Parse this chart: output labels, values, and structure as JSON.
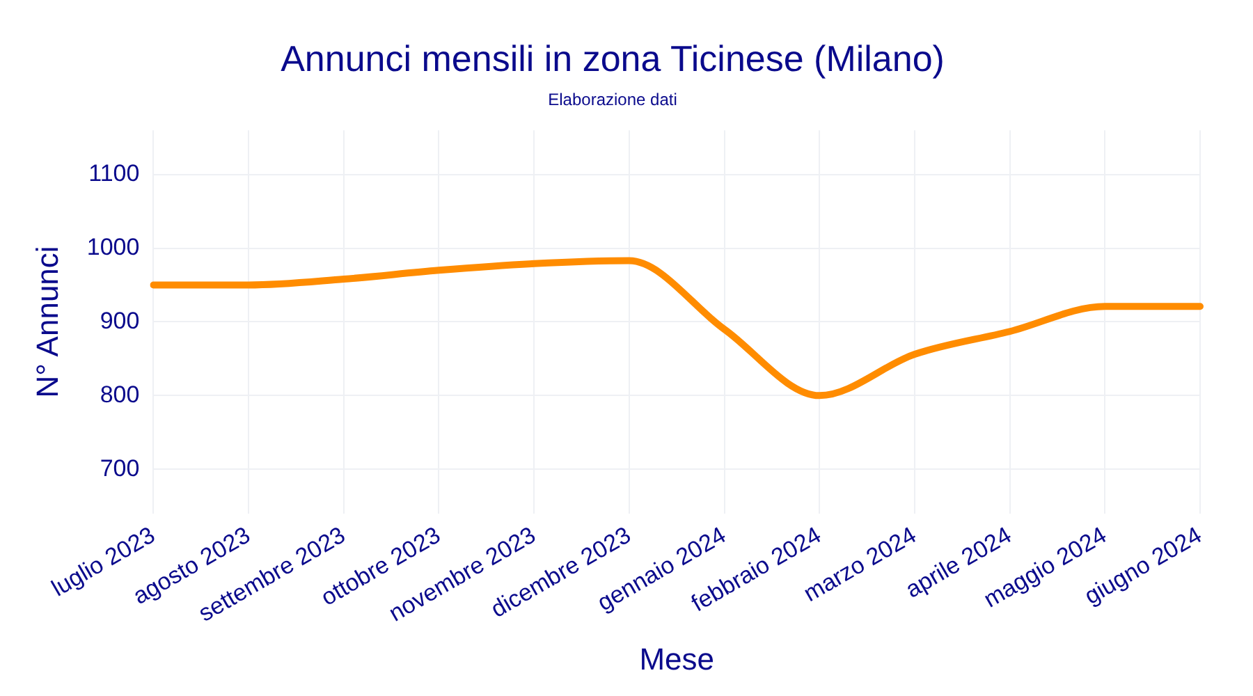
{
  "chart_data": {
    "type": "line",
    "title": "Annunci mensili in zona Ticinese (Milano)",
    "subtitle": "Elaborazione dati",
    "xlabel": "Mese",
    "ylabel": "N° Annunci",
    "categories": [
      "luglio 2023",
      "agosto 2023",
      "settembre 2023",
      "ottobre 2023",
      "novembre 2023",
      "dicembre 2023",
      "gennaio 2024",
      "febbraio 2024",
      "marzo 2024",
      "aprile 2024",
      "maggio 2024",
      "giugno 2024"
    ],
    "series": [
      {
        "color": "#ff8c00",
        "values": [
          950,
          950,
          958,
          970,
          979,
          983,
          890,
          800,
          856,
          887,
          921,
          921
        ]
      }
    ],
    "ylim": [
      640,
      1160
    ],
    "yticks": [
      700,
      800,
      900,
      1000,
      1100
    ],
    "grid": true,
    "legend": false,
    "marker": "none",
    "line_style": "solid"
  }
}
